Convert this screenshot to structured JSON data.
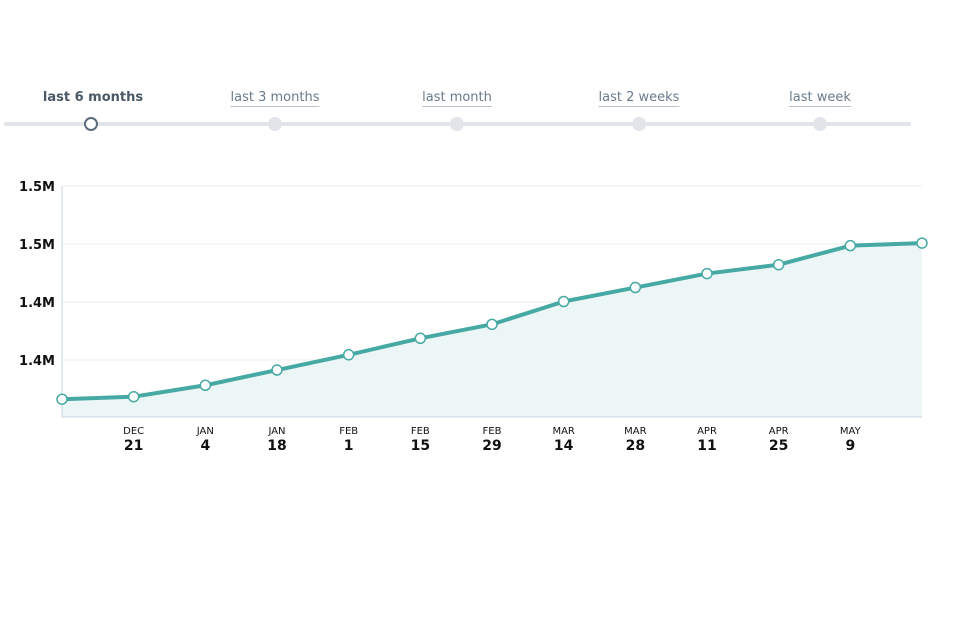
{
  "range_selector": {
    "options": [
      {
        "label": "last 6 months",
        "active": true
      },
      {
        "label": "last 3 months",
        "active": false
      },
      {
        "label": "last month",
        "active": false
      },
      {
        "label": "last 2 weeks",
        "active": false
      },
      {
        "label": "last week",
        "active": false
      }
    ]
  },
  "colors": {
    "line": "#46a9a3",
    "area": "#edf6f6",
    "grid": "#eeeeee",
    "axis": "#c8d4e0"
  },
  "chart_data": {
    "type": "area",
    "y_tick_labels": [
      "1.5M",
      "1.5M",
      "1.4M",
      "1.4M"
    ],
    "y_ticks": [
      1500000,
      1475000,
      1450000,
      1425000
    ],
    "ylim": [
      1400000,
      1500000
    ],
    "x_tick_labels": [
      {
        "month": "DEC",
        "day": "21"
      },
      {
        "month": "JAN",
        "day": "4"
      },
      {
        "month": "JAN",
        "day": "18"
      },
      {
        "month": "FEB",
        "day": "1"
      },
      {
        "month": "FEB",
        "day": "15"
      },
      {
        "month": "FEB",
        "day": "29"
      },
      {
        "month": "MAR",
        "day": "14"
      },
      {
        "month": "MAR",
        "day": "28"
      },
      {
        "month": "APR",
        "day": "11"
      },
      {
        "month": "APR",
        "day": "25"
      },
      {
        "month": "MAY",
        "day": "9"
      }
    ],
    "points": [
      {
        "x": "Dec 7",
        "y": 1412000
      },
      {
        "x": "Dec 21",
        "y": 1413000
      },
      {
        "x": "Jan 4",
        "y": 1417500
      },
      {
        "x": "Jan 18",
        "y": 1423500
      },
      {
        "x": "Feb 1",
        "y": 1429500
      },
      {
        "x": "Feb 15",
        "y": 1436000
      },
      {
        "x": "Feb 29",
        "y": 1441500
      },
      {
        "x": "Mar 14",
        "y": 1450500
      },
      {
        "x": "Mar 28",
        "y": 1456000
      },
      {
        "x": "Apr 11",
        "y": 1461500
      },
      {
        "x": "Apr 25",
        "y": 1465000
      },
      {
        "x": "May 9",
        "y": 1472500
      },
      {
        "x": "May 23",
        "y": 1473500
      }
    ],
    "grid": true
  }
}
